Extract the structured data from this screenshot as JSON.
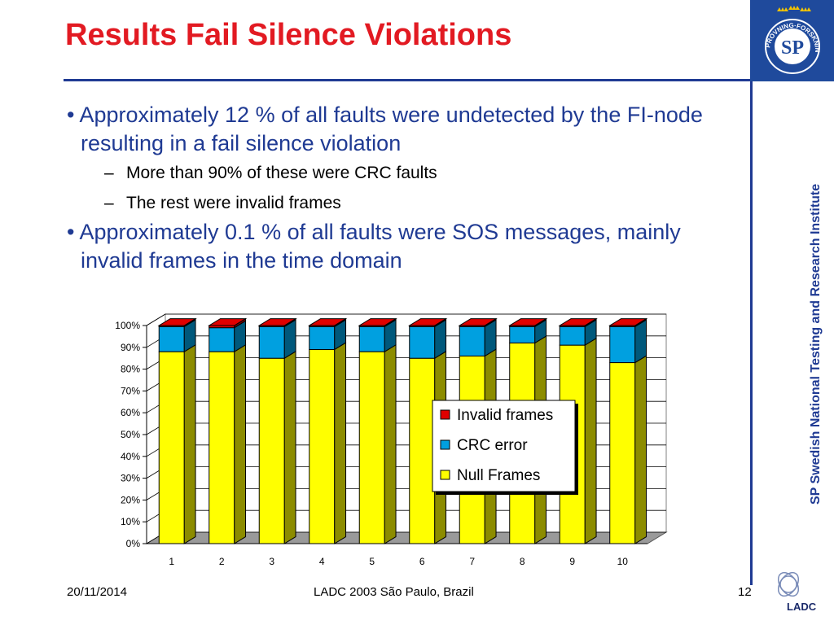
{
  "slide": {
    "title": "Results Fail Silence Violations",
    "bullets": [
      {
        "text": "Approximately 12 % of all faults were undetected by the FI-node resulting in a fail silence violation",
        "sub": [
          "More than 90% of these were CRC faults",
          "The rest were invalid frames"
        ]
      },
      {
        "text": "Approximately 0.1 % of all faults were SOS messages, mainly invalid frames in the time domain",
        "sub": []
      }
    ],
    "side_text": "SP Swedish National Testing and Research Institute",
    "footer": {
      "date": "20/11/2014",
      "center": "LADC 2003 São Paulo, Brazil",
      "page": "12"
    },
    "logos": {
      "sp_initials": "SP",
      "sp_ring_text": "PROVNING·FORSKNING",
      "ladc": "LADC"
    }
  },
  "colors": {
    "title": "#e21a22",
    "brand_blue": "#1f3a93",
    "null_frames": "#ffff00",
    "crc_error": "#00a0e0",
    "invalid_frames": "#e00000"
  },
  "chart_data": {
    "type": "bar",
    "stacked": true,
    "percent": true,
    "categories": [
      "1",
      "2",
      "3",
      "4",
      "5",
      "6",
      "7",
      "8",
      "9",
      "10"
    ],
    "series": [
      {
        "name": "Null Frames",
        "values": [
          88,
          88,
          85,
          89,
          88,
          85,
          86,
          92,
          91,
          83
        ]
      },
      {
        "name": "CRC error",
        "values": [
          11.5,
          11,
          14.5,
          10.5,
          11.5,
          14.5,
          13.5,
          7.5,
          8.5,
          16.5
        ]
      },
      {
        "name": "Invalid frames",
        "values": [
          0.5,
          1,
          0.5,
          0.5,
          0.5,
          0.5,
          0.5,
          0.5,
          0.5,
          0.5
        ]
      }
    ],
    "yticks": [
      "0%",
      "10%",
      "20%",
      "30%",
      "40%",
      "50%",
      "60%",
      "70%",
      "80%",
      "90%",
      "100%"
    ],
    "ylim": [
      0,
      100
    ],
    "grid": true,
    "legend_position": "right",
    "legend_order": [
      "Invalid frames",
      "CRC error",
      "Null Frames"
    ]
  }
}
